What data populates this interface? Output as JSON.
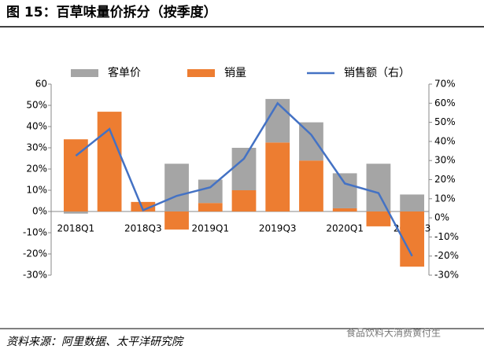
{
  "chart_data": {
    "type": "bar",
    "stacked": true,
    "title": "图 15：百草味量价拆分（按季度）",
    "categories": [
      "2018Q1",
      null,
      "2018Q3",
      null,
      "2019Q1",
      null,
      "2019Q3",
      null,
      "2020Q1",
      null,
      "2020Q3"
    ],
    "series": [
      {
        "name": "客单价",
        "color": "#a5a5a5",
        "values": [
          -1,
          0,
          0,
          22.5,
          11,
          20,
          20.5,
          18,
          16.5,
          22.5,
          8
        ]
      },
      {
        "name": "销量",
        "color": "#ed7d31",
        "values": [
          34,
          47,
          4.5,
          -8.5,
          4,
          10,
          32.5,
          24,
          1.5,
          -7,
          -26
        ]
      },
      {
        "name": "销售额（右）",
        "color": "#4472c4",
        "type": "line",
        "axis": "y2",
        "values": [
          32.5,
          46.5,
          4,
          11.5,
          16,
          31,
          60,
          43.5,
          18,
          13,
          -20
        ]
      }
    ],
    "ylim": [
      -30,
      60
    ],
    "yticks": [
      {
        "value": -30,
        "label": "-30%"
      },
      {
        "value": -20,
        "label": "-20%"
      },
      {
        "value": -10,
        "label": "-10%"
      },
      {
        "value": 0,
        "label": "0%"
      },
      {
        "value": 10,
        "label": "10%"
      },
      {
        "value": 20,
        "label": "20%"
      },
      {
        "value": 30,
        "label": "30%"
      },
      {
        "value": 40,
        "label": "40%"
      },
      {
        "value": 50,
        "label": "50%"
      },
      60
    ],
    "y2lim": [
      -30,
      70
    ],
    "y2ticks": [
      {
        "value": -30,
        "label": "-30%"
      },
      {
        "value": -20,
        "label": "-20%"
      },
      {
        "value": -10,
        "label": "-10%"
      },
      {
        "value": 0,
        "label": "0%"
      },
      {
        "value": 10,
        "label": "10%"
      },
      {
        "value": 20,
        "label": "20%"
      },
      {
        "value": 30,
        "label": "30%"
      },
      {
        "value": 40,
        "label": "40%"
      },
      {
        "value": 50,
        "label": "50%"
      },
      {
        "value": 60,
        "label": "60%"
      },
      {
        "value": 70,
        "label": "70%"
      }
    ],
    "source": "资料来源：阿里数据、太平洋研究院",
    "watermark": "食品饮料大消费黄付生"
  }
}
